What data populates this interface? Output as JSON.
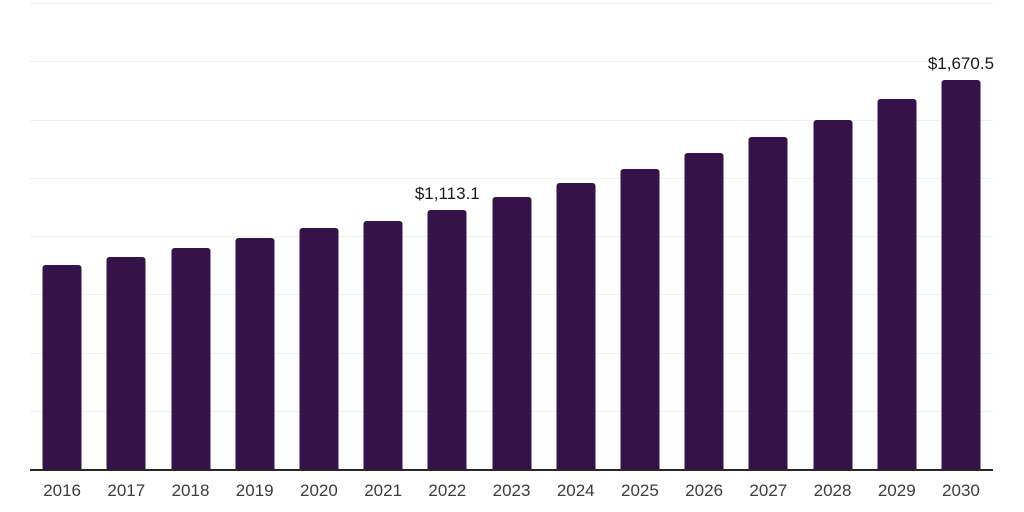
{
  "chart_data": {
    "type": "bar",
    "title": "",
    "xlabel": "",
    "ylabel": "",
    "categories": [
      "2016",
      "2017",
      "2018",
      "2019",
      "2020",
      "2021",
      "2022",
      "2023",
      "2024",
      "2025",
      "2026",
      "2027",
      "2028",
      "2029",
      "2030"
    ],
    "values": [
      875,
      908,
      950,
      992,
      1035,
      1065,
      1113.1,
      1168,
      1228,
      1287,
      1355,
      1424,
      1500,
      1588,
      1670.5
    ],
    "data_labels": [
      {
        "category": "2022",
        "text": "$1,113.1"
      },
      {
        "category": "2030",
        "text": "$1,670.5"
      }
    ],
    "ylim": [
      0,
      2000
    ],
    "gridline_step": 250,
    "grid": "horizontal-only",
    "legend": "none",
    "y_tick_labels_visible": false,
    "colors": {
      "bar": "#351349",
      "axis_line": "#262626",
      "gridline": "#f0f0f0",
      "data_label_text": "#1a1a1a",
      "tick_label_text": "#3d3d3d",
      "background": "#ffffff"
    }
  }
}
